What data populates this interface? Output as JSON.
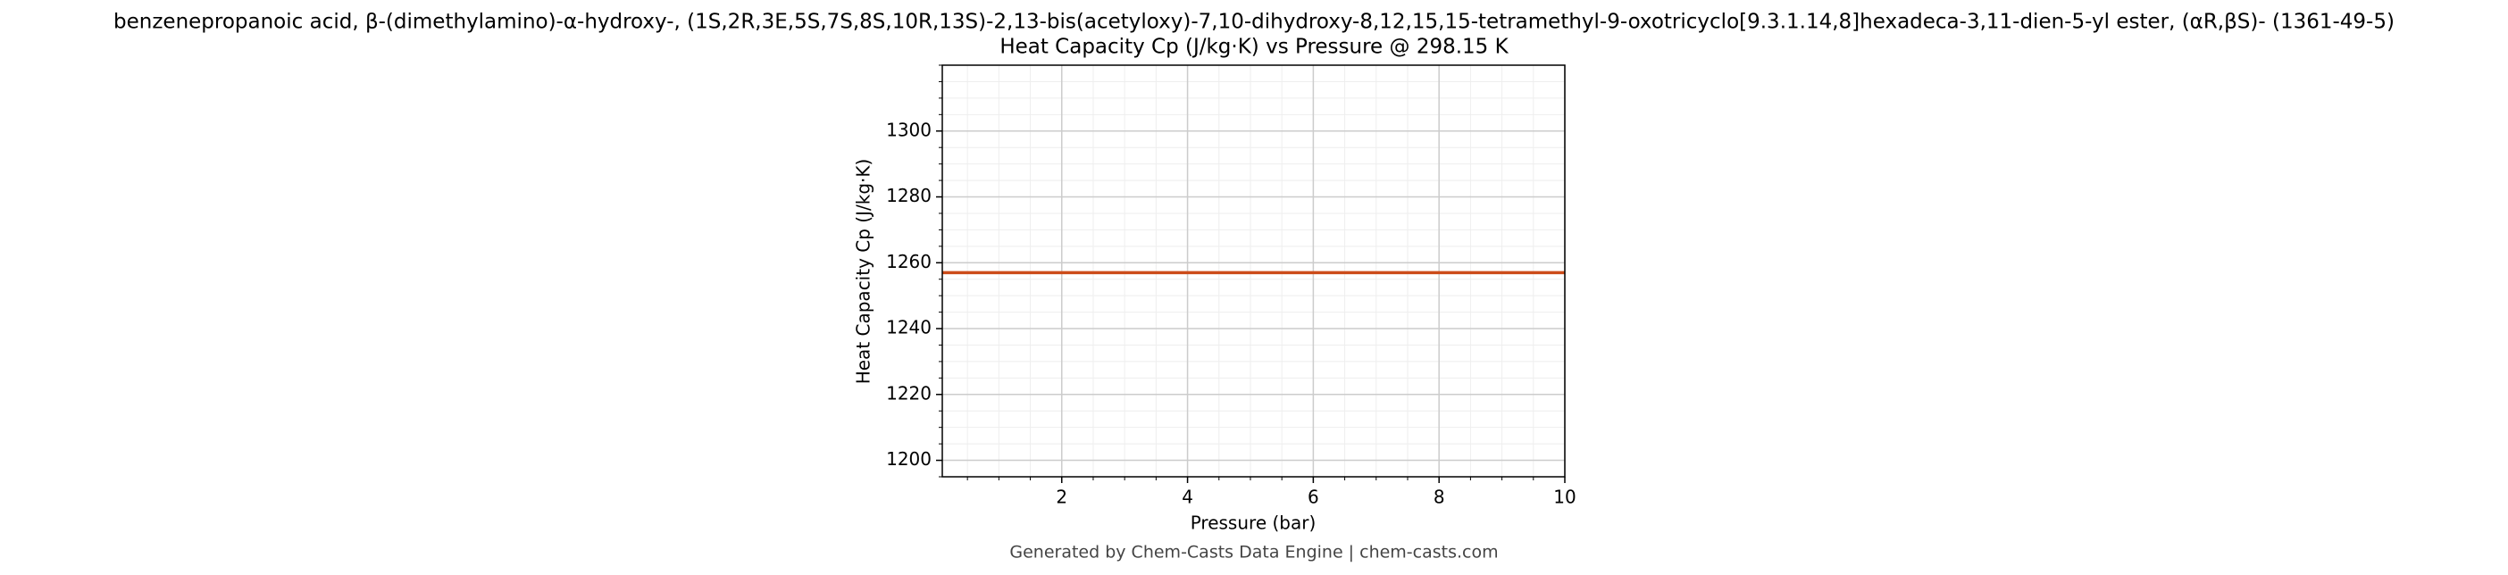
{
  "chart_data": {
    "type": "line",
    "title": "benzenepropanoic acid, β-(dimethylamino)-α-hydroxy-, (1S,2R,3E,5S,7S,8S,10R,13S)-2,13-bis(acetyloxy)-7,10-dihydroxy-8,12,15,15-tetramethyl-9-oxotricyclo[9.3.1.14,8]hexadeca-3,11-dien-5-yl ester, (αR,βS)- (1361-49-5)",
    "subtitle": "Heat Capacity Cp (J/kg·K) vs Pressure @ 298.15 K",
    "x_label": "Pressure (bar)",
    "y_label": "Heat Capacity Cp (J/kg·K)",
    "footer": "Generated by Chem-Casts Data Engine | chem-casts.com",
    "x": [
      0.1,
      10
    ],
    "series": [
      {
        "name": "Cp",
        "color": "#cc4c1a",
        "values": [
          1257,
          1257
        ]
      }
    ],
    "xlim": [
      0.1,
      10
    ],
    "xticks": [
      2,
      4,
      6,
      8,
      10
    ],
    "ylim": [
      1195,
      1320
    ],
    "yticks": [
      1200,
      1220,
      1240,
      1260,
      1280,
      1300
    ],
    "grid": true,
    "minor_grid": true
  }
}
